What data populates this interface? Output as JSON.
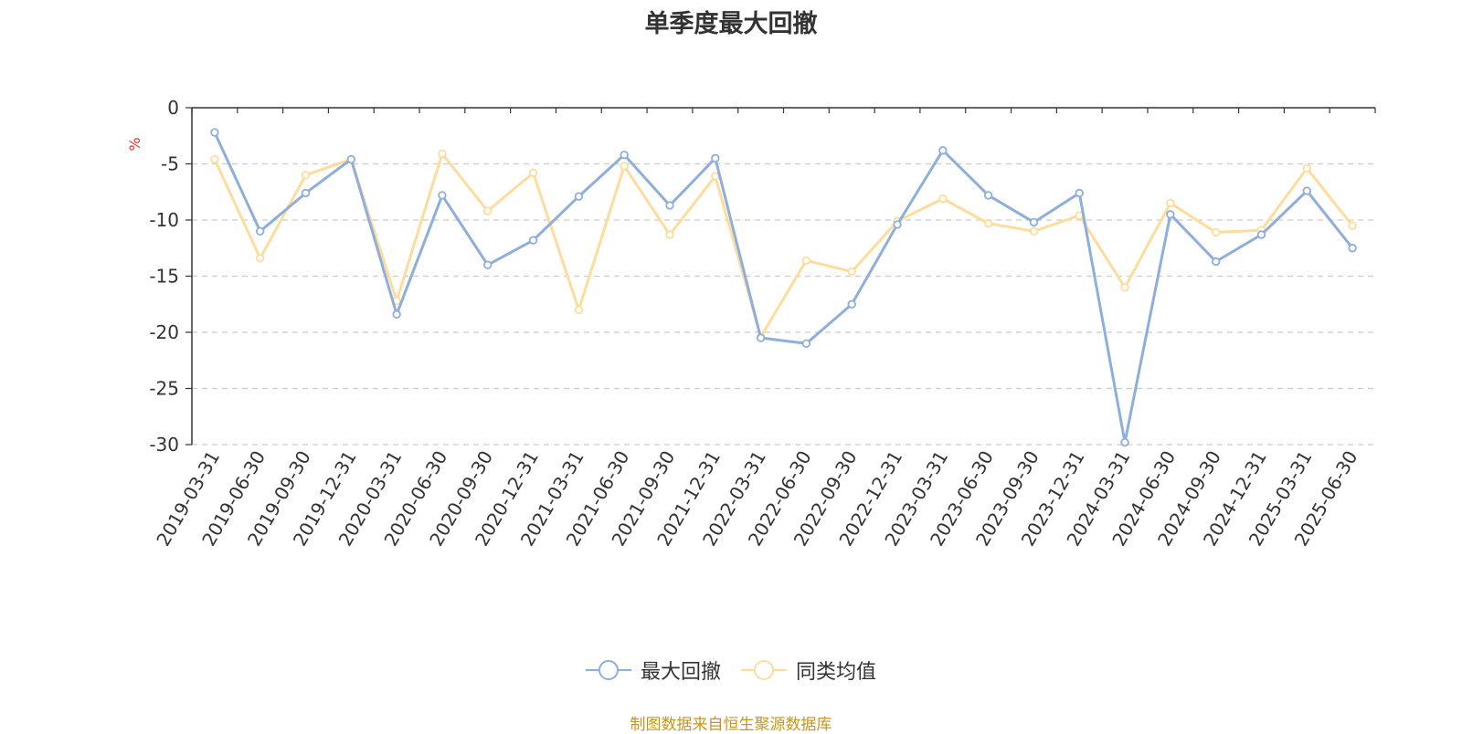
{
  "chart_data": {
    "type": "line",
    "title": "单季度最大回撤",
    "ylabel": "%",
    "ylim": [
      -30,
      0
    ],
    "yticks": [
      0,
      -5,
      -10,
      -15,
      -20,
      -25,
      -30
    ],
    "grid": true,
    "legend_position": "bottom",
    "categories": [
      "2019-03-31",
      "2019-06-30",
      "2019-09-30",
      "2019-12-31",
      "2020-03-31",
      "2020-06-30",
      "2020-09-30",
      "2020-12-31",
      "2021-03-31",
      "2021-06-30",
      "2021-09-30",
      "2021-12-31",
      "2022-03-31",
      "2022-06-30",
      "2022-09-30",
      "2022-12-31",
      "2023-03-31",
      "2023-06-30",
      "2023-09-30",
      "2023-12-31",
      "2024-03-31",
      "2024-06-30",
      "2024-09-30",
      "2024-12-31",
      "2025-03-31",
      "2025-06-30"
    ],
    "series": [
      {
        "name": "最大回撤",
        "color": "#8eaedc",
        "values": [
          -2.2,
          -11.0,
          -7.6,
          -4.6,
          -18.4,
          -7.8,
          -14.0,
          -11.8,
          -7.9,
          -4.2,
          -8.7,
          -4.5,
          -20.5,
          -21.0,
          -17.5,
          -10.4,
          -3.8,
          -7.8,
          -10.2,
          -7.6,
          -29.8,
          -9.5,
          -13.7,
          -11.3,
          -7.4,
          -12.5
        ]
      },
      {
        "name": "同类均值",
        "color": "#fddc9c",
        "values": [
          -4.6,
          -13.4,
          -6.0,
          -4.6,
          -17.2,
          -4.1,
          -9.2,
          -5.8,
          -18.0,
          -5.2,
          -11.3,
          -6.1,
          -20.4,
          -13.6,
          -14.6,
          -10.1,
          -8.1,
          -10.3,
          -11.0,
          -9.6,
          -16.0,
          -8.5,
          -11.1,
          -10.9,
          -5.4,
          -10.5
        ]
      }
    ]
  },
  "source": "制图数据来自恒生聚源数据库"
}
